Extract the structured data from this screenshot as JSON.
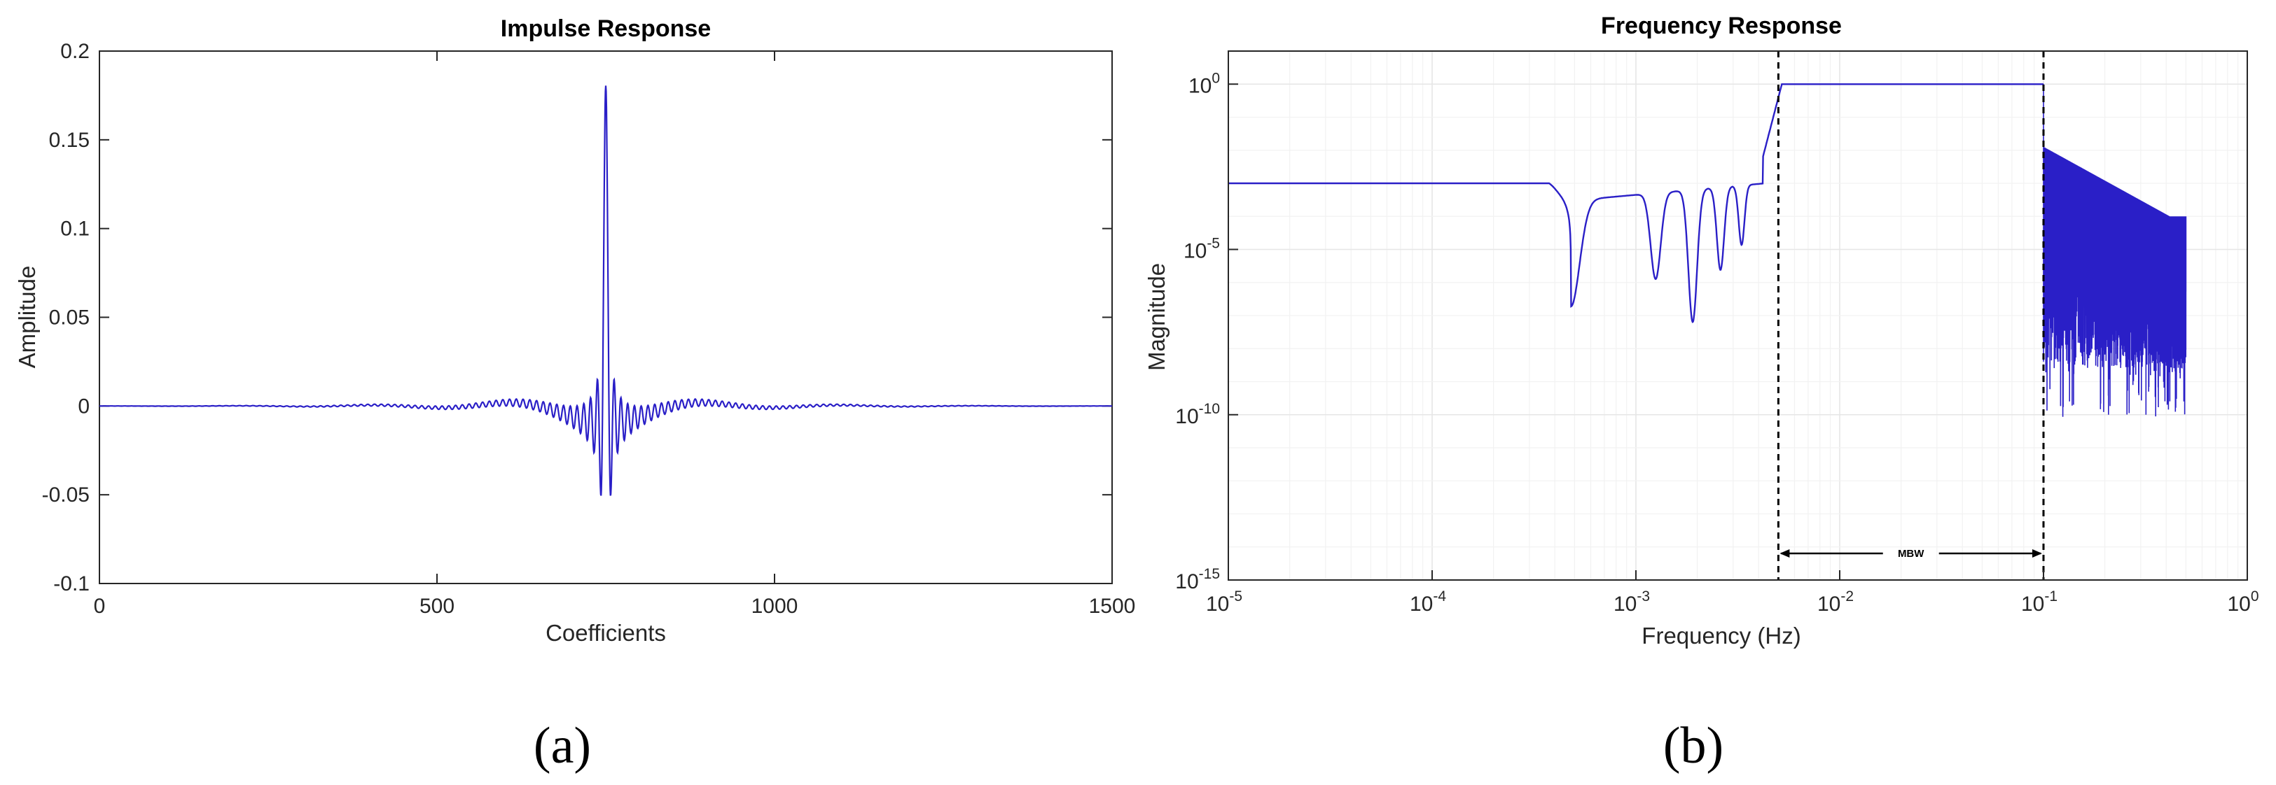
{
  "panel_labels": [
    "(a)",
    "(b)"
  ],
  "colors": {
    "line": "#2a1fc7",
    "axes": "#262626",
    "grid": "#e6e6e6",
    "grid_minor": "#f2f2f2"
  },
  "chart_data": [
    {
      "type": "line",
      "title": "Impulse Response",
      "xlabel": "Coefficients",
      "ylabel": "Amplitude",
      "xlim": [
        0,
        1500
      ],
      "ylim": [
        -0.1,
        0.2
      ],
      "xticks": [
        0,
        500,
        1000,
        1500
      ],
      "yticks": [
        -0.1,
        -0.05,
        0,
        0.05,
        0.1,
        0.15,
        0.2
      ],
      "xtick_labels": [
        "0",
        "500",
        "1000",
        "1500"
      ],
      "ytick_labels": [
        "-0.1",
        "-0.05",
        "0",
        "0.05",
        "0.1",
        "0.15",
        "0.2"
      ],
      "grid": false,
      "series": [
        {
          "description_points": [
            {
              "x": 0,
              "y": 0
            },
            {
              "x": 600,
              "y": 0.003
            },
            {
              "x": 700,
              "y": -0.02
            },
            {
              "x": 736,
              "y": -0.052
            },
            {
              "x": 742,
              "y": 0.016
            },
            {
              "x": 750,
              "y": 0.186
            },
            {
              "x": 758,
              "y": 0.016
            },
            {
              "x": 762,
              "y": -0.052
            },
            {
              "x": 800,
              "y": -0.02
            },
            {
              "x": 900,
              "y": 0.003
            },
            {
              "x": 1500,
              "y": 0
            }
          ]
        }
      ]
    },
    {
      "type": "line",
      "title": "Frequency Response",
      "xlabel": "Frequency (Hz)",
      "ylabel": "Magnitude",
      "xscale": "log",
      "yscale": "log",
      "xlim": [
        1e-05,
        1
      ],
      "ylim": [
        1e-15,
        10
      ],
      "xticks": [
        -5,
        -4,
        -3,
        -2,
        -1,
        0
      ],
      "yticks": [
        -15,
        -10,
        -5,
        0
      ],
      "xtick_base": "10",
      "xtick_exps": [
        "-5",
        "-4",
        "-3",
        "-2",
        "-1",
        "0"
      ],
      "ytick_base": "10",
      "ytick_exps": [
        "-15",
        "-10",
        "-5",
        "0"
      ],
      "grid": true,
      "cutoff_lines_hz": [
        0.005,
        0.1
      ],
      "annotation": "MBW",
      "series": [
        {
          "description_points": [
            {
              "x": 1e-05,
              "y": 0.001
            },
            {
              "x": 0.0002,
              "y": 0.001
            },
            {
              "x": 0.00048,
              "y": 2e-06
            },
            {
              "x": 0.00125,
              "y": 5e-06
            },
            {
              "x": 0.0019,
              "y": 1e-08
            },
            {
              "x": 0.0026,
              "y": 5e-06
            },
            {
              "x": 0.0035,
              "y": 0.003
            },
            {
              "x": 0.005,
              "y": 1
            },
            {
              "x": 0.1,
              "y": 1
            },
            {
              "x": 0.5,
              "y": 0.0001
            }
          ]
        }
      ]
    }
  ]
}
